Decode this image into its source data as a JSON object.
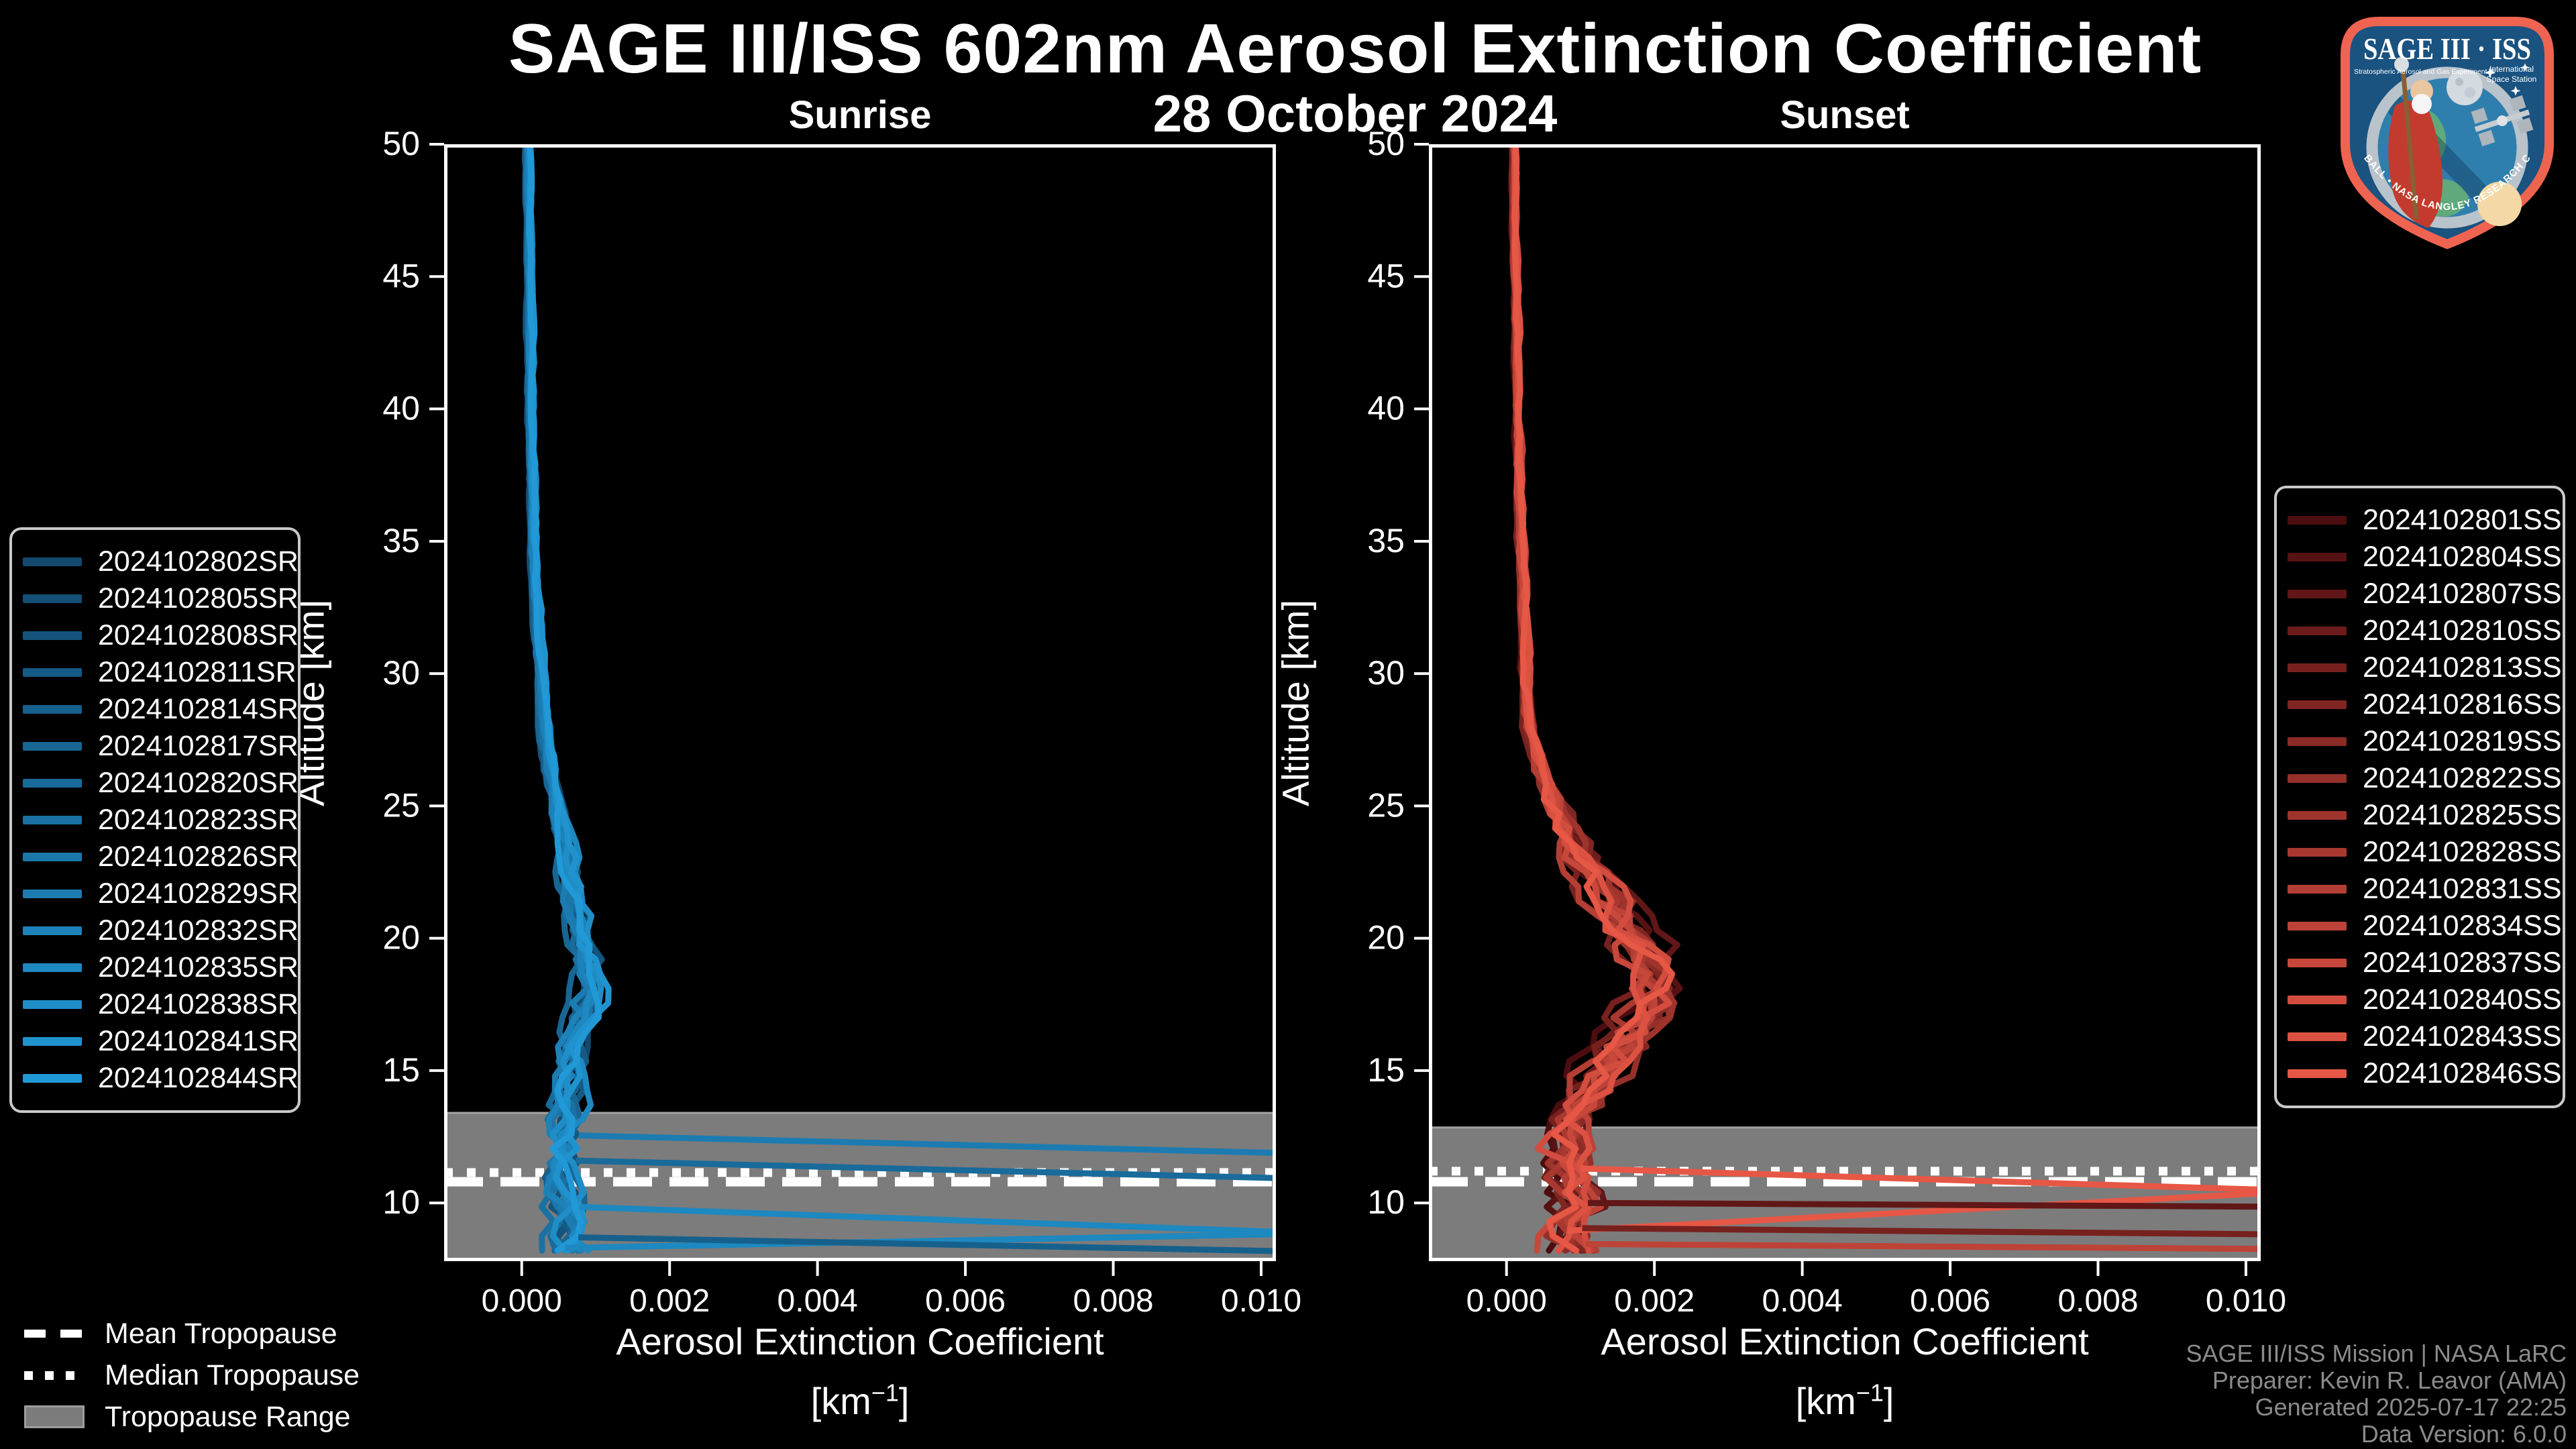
{
  "figure": {
    "title": "SAGE III/ISS 602nm Aerosol Extinction Coefficient",
    "date": "28 October 2024"
  },
  "tropopause_legend": {
    "mean": "Mean Tropopause",
    "median": "Median Tropopause",
    "range": "Tropopause Range"
  },
  "footer": {
    "lines": [
      "SAGE III/ISS Mission | NASA LaRC",
      "Preparer: Kevin R. Leavor (AMA)",
      "Generated 2025-07-17 22:25",
      "Data Version: 6.0.0"
    ]
  },
  "logo": {
    "title": "SAGE III · ISS",
    "subtitle": "Stratospheric Aerosol and Gas Experiment III",
    "iss_line1": "International",
    "iss_line2": "Space Station",
    "arc_text": "BALL • NASA LANGLEY RESEARCH CENTER • TAS-I • ESA"
  },
  "style": {
    "band_color": "#7c7c7c",
    "band_edge_color": "#a3a3a3",
    "frame_color": "#ffffff",
    "footer_color": "#8b8b8b",
    "background": "#000000"
  },
  "chart_data": [
    {
      "type": "line",
      "id": "sunrise",
      "title": "Sunrise",
      "xlabel": "Aerosol Extinction Coefficient",
      "unit_prefix": "[km",
      "unit_sup": "−1",
      "unit_suffix": "]",
      "ylabel": "Altitude [km]",
      "xlim": [
        -0.00105,
        0.0102
      ],
      "ylim": [
        7.8,
        50
      ],
      "xticks": [
        0.0,
        0.002,
        0.004,
        0.006,
        0.008,
        0.01
      ],
      "xtick_labels": [
        "0.000",
        "0.002",
        "0.004",
        "0.006",
        "0.008",
        "0.010"
      ],
      "yticks": [
        10,
        15,
        20,
        25,
        30,
        35,
        40,
        45,
        50
      ],
      "grid": false,
      "legend_position": "outside-left",
      "line_width": 9,
      "seed": 20241028,
      "color_start": "#12496f",
      "color_end": "#2199d6",
      "series_labels": [
        "2024102802SR",
        "2024102805SR",
        "2024102808SR",
        "2024102811SR",
        "2024102814SR",
        "2024102817SR",
        "2024102820SR",
        "2024102823SR",
        "2024102826SR",
        "2024102829SR",
        "2024102832SR",
        "2024102835SR",
        "2024102838SR",
        "2024102841SR",
        "2024102844SR"
      ],
      "tropopause": {
        "mean_km": 10.8,
        "median_km": 11.15,
        "range_top_km": 13.4,
        "range_bottom_km": 7.8
      },
      "base_profile_km_ext": [
        [
          50,
          8e-05
        ],
        [
          45,
          0.0001
        ],
        [
          40,
          0.00012
        ],
        [
          35,
          0.00016
        ],
        [
          30,
          0.00024
        ],
        [
          28,
          0.0003
        ],
        [
          26,
          0.0004
        ],
        [
          24,
          0.00052
        ],
        [
          22,
          0.00066
        ],
        [
          20,
          0.0008
        ],
        [
          19,
          0.00086
        ],
        [
          18,
          0.0009
        ],
        [
          17,
          0.00082
        ],
        [
          16,
          0.00072
        ],
        [
          15,
          0.00066
        ],
        [
          14,
          0.00062
        ],
        [
          13,
          0.0006
        ],
        [
          12,
          0.00054
        ],
        [
          11,
          0.00052
        ],
        [
          10,
          0.0006
        ],
        [
          9,
          0.00055
        ],
        [
          8,
          0.0006
        ]
      ],
      "noise_amplitude_km_ext": [
        [
          50,
          2e-05
        ],
        [
          30,
          4e-05
        ],
        [
          26,
          7e-05
        ],
        [
          23,
          0.00012
        ],
        [
          20,
          0.00016
        ],
        [
          18,
          0.0002
        ],
        [
          15,
          0.00022
        ],
        [
          12,
          0.00028
        ],
        [
          8,
          0.0003
        ]
      ],
      "excursions": [
        {
          "series": 9,
          "from_km": 12.55,
          "to_km": 11.85
        },
        {
          "series": 6,
          "from_km": 11.6,
          "to_km": 10.9
        },
        {
          "series": 11,
          "from_km": 9.85,
          "to_km": 8.85,
          "return_km": 8.3
        },
        {
          "series": 4,
          "from_km": 8.7,
          "to_km": 8.15
        }
      ]
    },
    {
      "type": "line",
      "id": "sunset",
      "title": "Sunset",
      "xlabel": "Aerosol Extinction Coefficient",
      "unit_prefix": "[km",
      "unit_sup": "−1",
      "unit_suffix": "]",
      "ylabel": "Altitude [km]",
      "xlim": [
        -0.00105,
        0.0102
      ],
      "ylim": [
        7.8,
        50
      ],
      "xticks": [
        0.0,
        0.002,
        0.004,
        0.006,
        0.008,
        0.01
      ],
      "xtick_labels": [
        "0.000",
        "0.002",
        "0.004",
        "0.006",
        "0.008",
        "0.010"
      ],
      "yticks": [
        10,
        15,
        20,
        25,
        30,
        35,
        40,
        45,
        50
      ],
      "grid": false,
      "legend_position": "outside-right",
      "line_width": 9,
      "seed": 77103,
      "color_start": "#4d0d10",
      "color_end": "#e65746",
      "series_labels": [
        "2024102801SS",
        "2024102804SS",
        "2024102807SS",
        "2024102810SS",
        "2024102813SS",
        "2024102816SS",
        "2024102819SS",
        "2024102822SS",
        "2024102825SS",
        "2024102828SS",
        "2024102831SS",
        "2024102834SS",
        "2024102837SS",
        "2024102840SS",
        "2024102843SS",
        "2024102846SS"
      ],
      "tropopause": {
        "mean_km": 10.8,
        "median_km": 11.2,
        "range_top_km": 12.85,
        "range_bottom_km": 7.8
      },
      "base_profile_km_ext": [
        [
          50,
          0.0001
        ],
        [
          45,
          0.00012
        ],
        [
          40,
          0.00015
        ],
        [
          35,
          0.0002
        ],
        [
          30,
          0.00026
        ],
        [
          28,
          0.00032
        ],
        [
          26,
          0.0005
        ],
        [
          24,
          0.0008
        ],
        [
          22,
          0.00125
        ],
        [
          21,
          0.0015
        ],
        [
          20,
          0.0017
        ],
        [
          19,
          0.00195
        ],
        [
          18.5,
          0.00205
        ],
        [
          18,
          0.00195
        ],
        [
          17,
          0.00175
        ],
        [
          16,
          0.0015
        ],
        [
          15,
          0.00125
        ],
        [
          14,
          0.00105
        ],
        [
          13,
          0.0009
        ],
        [
          12,
          0.0008
        ],
        [
          11,
          0.00082
        ],
        [
          10,
          0.0009
        ],
        [
          9,
          0.00082
        ],
        [
          8,
          0.0009
        ]
      ],
      "noise_amplitude_km_ext": [
        [
          50,
          2e-05
        ],
        [
          30,
          5e-05
        ],
        [
          26,
          0.0001
        ],
        [
          24,
          0.0002
        ],
        [
          22,
          0.0003
        ],
        [
          20,
          0.00038
        ],
        [
          18.5,
          0.00042
        ],
        [
          16,
          0.0004
        ],
        [
          13,
          0.00038
        ],
        [
          8,
          0.0004
        ]
      ],
      "excursions": [
        {
          "series": 15,
          "from_km": 11.3,
          "to_km": 10.45,
          "return_km": 8.95
        },
        {
          "series": 2,
          "from_km": 10.0,
          "to_km": 9.85
        },
        {
          "series": 4,
          "from_km": 9.05,
          "to_km": 8.8
        },
        {
          "series": 11,
          "from_km": 8.45,
          "to_km": 8.25
        }
      ]
    }
  ]
}
